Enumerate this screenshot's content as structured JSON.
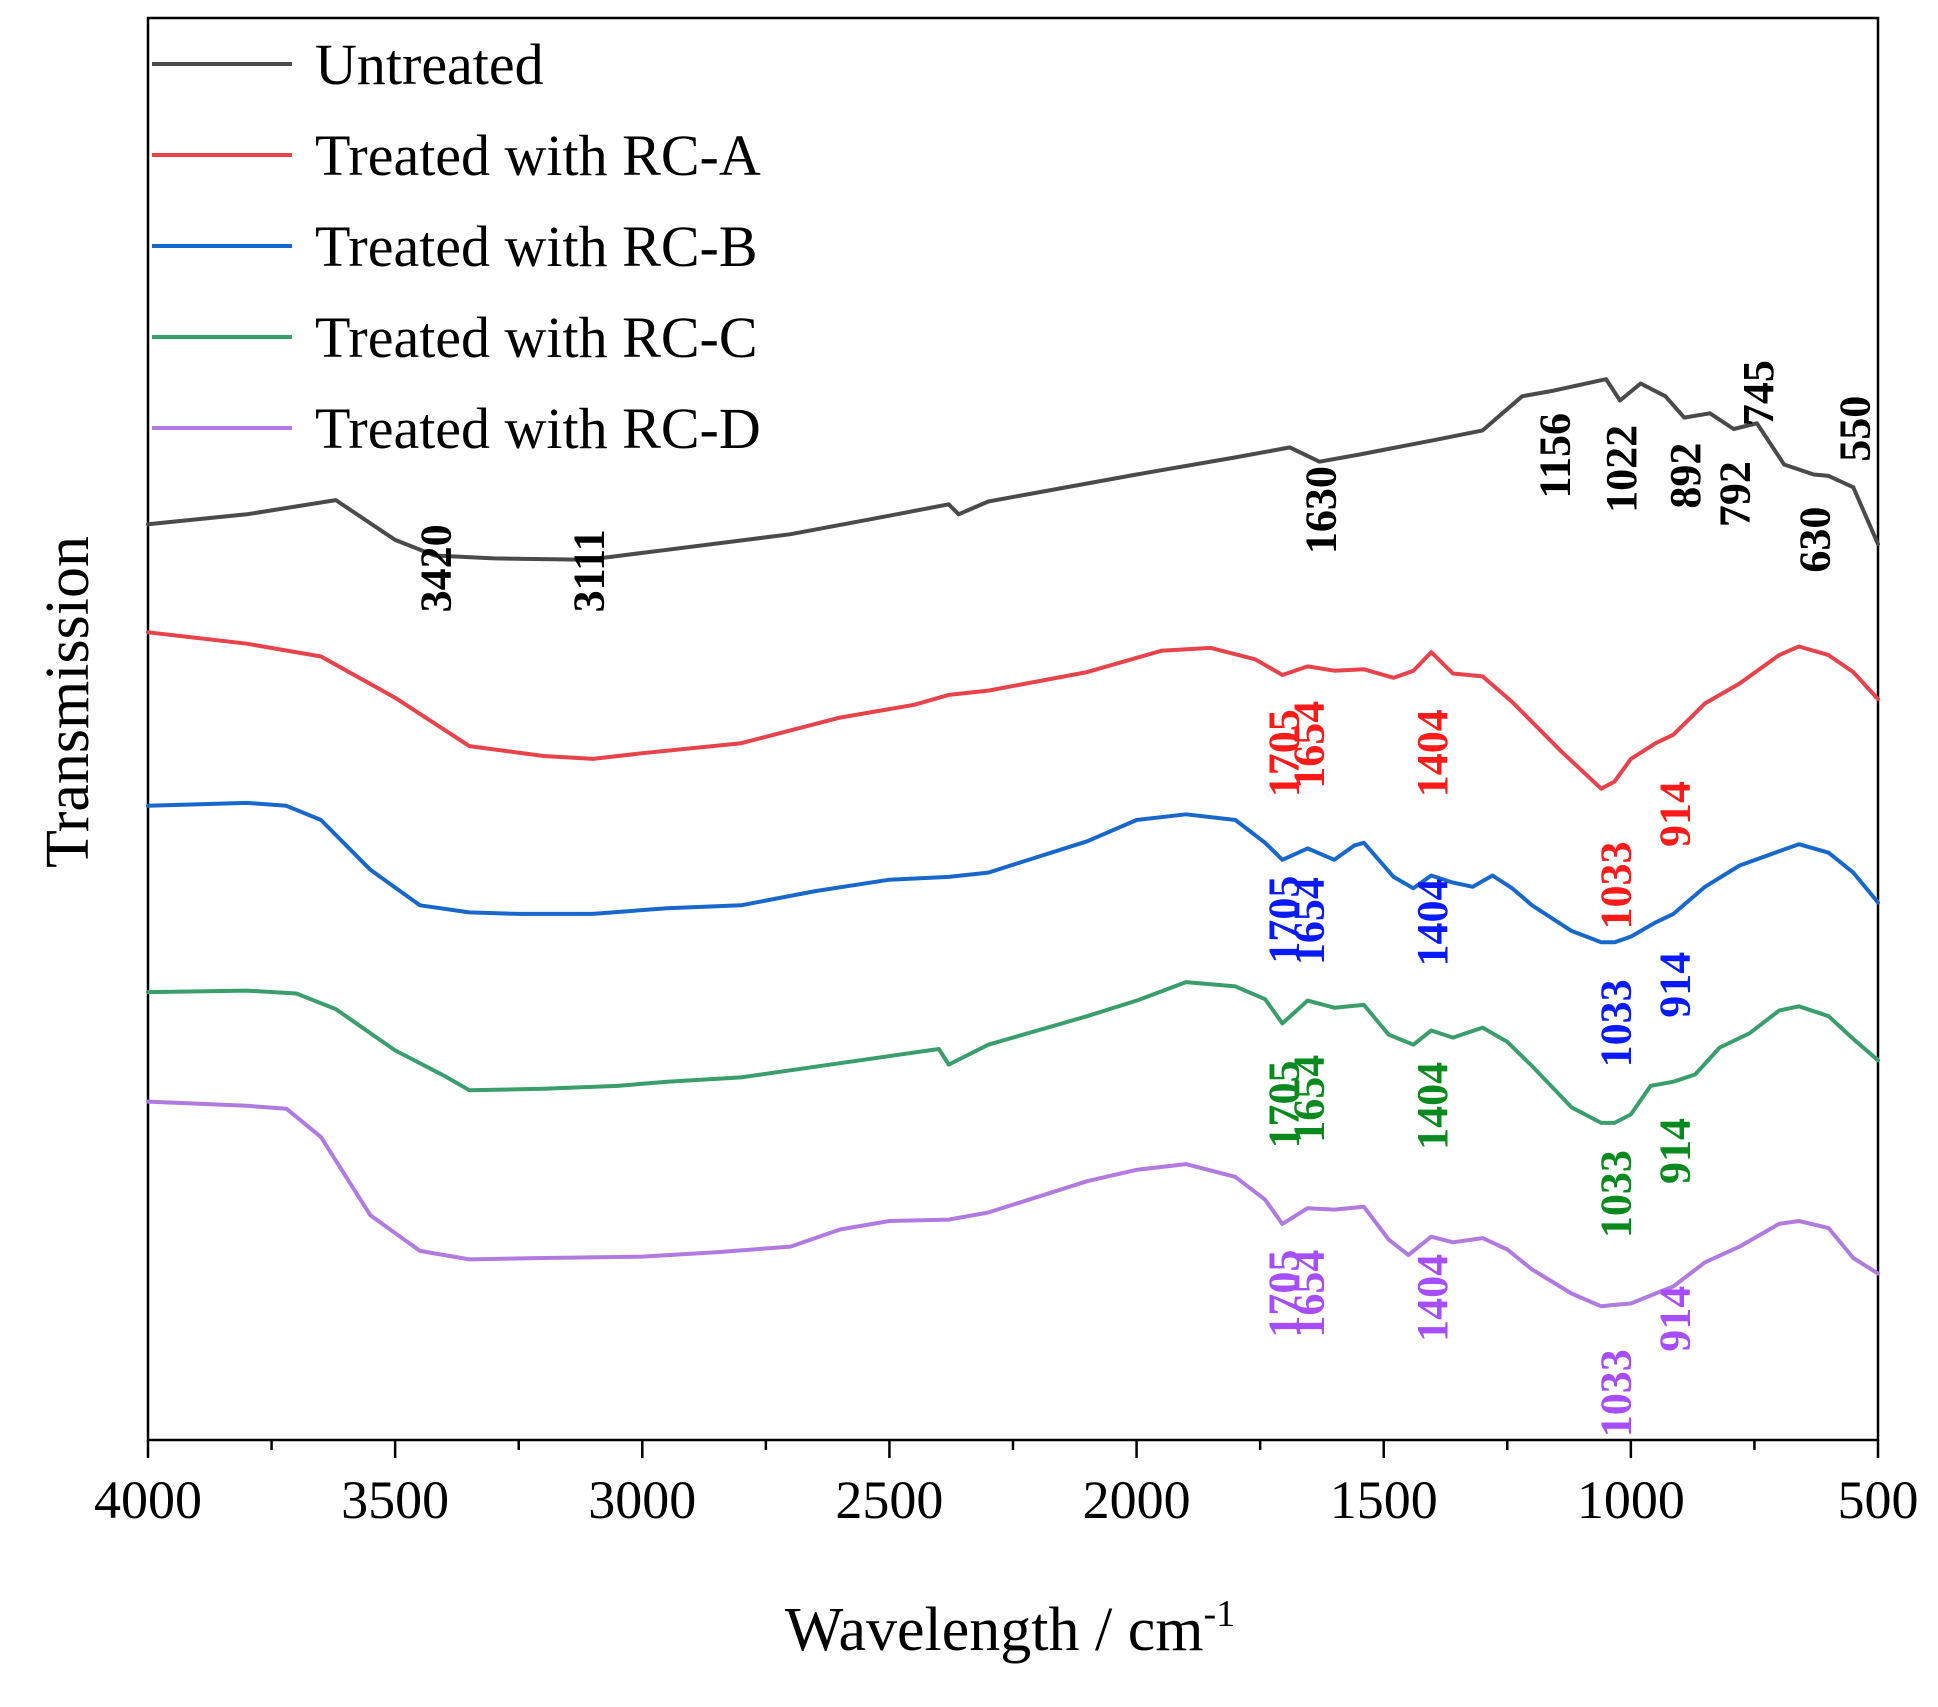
{
  "chart_data": {
    "type": "line",
    "title": "",
    "xlabel": "Wavelength / cm",
    "xlabel_sup": "-1",
    "ylabel": "Transmission",
    "xlim": [
      4000,
      500
    ],
    "x_reversed": true,
    "ylim": [
      0,
      100
    ],
    "y_ticks_shown": false,
    "x_ticks": [
      4000,
      3500,
      3000,
      2500,
      2000,
      1500,
      1000,
      500
    ],
    "x_tick_labels": [
      "4000",
      "3500",
      "3000",
      "2500",
      "2000",
      "1500",
      "1000",
      "500"
    ],
    "grid": false,
    "legend_position": "top-left",
    "series": [
      {
        "name": "Untreated",
        "color": "#4a4a4a",
        "points": [
          [
            4000,
            64.4
          ],
          [
            3800,
            65.1
          ],
          [
            3620,
            66.1
          ],
          [
            3500,
            63.3
          ],
          [
            3420,
            62.2
          ],
          [
            3300,
            62.0
          ],
          [
            3111,
            61.9
          ],
          [
            2950,
            62.6
          ],
          [
            2700,
            63.7
          ],
          [
            2500,
            65.0
          ],
          [
            2380,
            65.8
          ],
          [
            2360,
            65.1
          ],
          [
            2300,
            66.0
          ],
          [
            2000,
            67.9
          ],
          [
            1800,
            69.1
          ],
          [
            1690,
            69.8
          ],
          [
            1630,
            68.8
          ],
          [
            1550,
            69.3
          ],
          [
            1400,
            70.3
          ],
          [
            1300,
            71.0
          ],
          [
            1220,
            73.4
          ],
          [
            1156,
            73.8
          ],
          [
            1050,
            74.6
          ],
          [
            1022,
            73.1
          ],
          [
            980,
            74.3
          ],
          [
            930,
            73.4
          ],
          [
            892,
            71.9
          ],
          [
            840,
            72.2
          ],
          [
            792,
            71.1
          ],
          [
            745,
            71.5
          ],
          [
            690,
            68.6
          ],
          [
            630,
            67.9
          ],
          [
            600,
            67.8
          ],
          [
            550,
            67.0
          ],
          [
            500,
            63.0
          ]
        ]
      },
      {
        "name": "Treated with RC-A",
        "color": "#e8424a",
        "points": [
          [
            4000,
            56.8
          ],
          [
            3800,
            56.0
          ],
          [
            3650,
            55.1
          ],
          [
            3500,
            52.2
          ],
          [
            3350,
            48.8
          ],
          [
            3200,
            48.1
          ],
          [
            3100,
            47.9
          ],
          [
            3000,
            48.3
          ],
          [
            2800,
            49.0
          ],
          [
            2600,
            50.8
          ],
          [
            2450,
            51.7
          ],
          [
            2380,
            52.4
          ],
          [
            2300,
            52.7
          ],
          [
            2100,
            54.0
          ],
          [
            1950,
            55.5
          ],
          [
            1850,
            55.7
          ],
          [
            1760,
            54.9
          ],
          [
            1705,
            53.8
          ],
          [
            1654,
            54.4
          ],
          [
            1600,
            54.1
          ],
          [
            1540,
            54.2
          ],
          [
            1480,
            53.6
          ],
          [
            1440,
            54.1
          ],
          [
            1404,
            55.4
          ],
          [
            1360,
            53.9
          ],
          [
            1300,
            53.7
          ],
          [
            1240,
            51.9
          ],
          [
            1140,
            48.4
          ],
          [
            1060,
            45.8
          ],
          [
            1033,
            46.3
          ],
          [
            1000,
            47.9
          ],
          [
            950,
            49.0
          ],
          [
            914,
            49.6
          ],
          [
            850,
            51.8
          ],
          [
            780,
            53.2
          ],
          [
            700,
            55.2
          ],
          [
            660,
            55.8
          ],
          [
            600,
            55.2
          ],
          [
            550,
            54.0
          ],
          [
            500,
            52.1
          ]
        ]
      },
      {
        "name": "Treated with RC-B",
        "color": "#1868cc",
        "points": [
          [
            4000,
            44.6
          ],
          [
            3800,
            44.8
          ],
          [
            3720,
            44.6
          ],
          [
            3650,
            43.6
          ],
          [
            3550,
            40.1
          ],
          [
            3450,
            37.6
          ],
          [
            3350,
            37.1
          ],
          [
            3250,
            37.0
          ],
          [
            3100,
            37.0
          ],
          [
            2950,
            37.4
          ],
          [
            2800,
            37.6
          ],
          [
            2650,
            38.6
          ],
          [
            2500,
            39.4
          ],
          [
            2380,
            39.6
          ],
          [
            2300,
            39.9
          ],
          [
            2100,
            42.1
          ],
          [
            2000,
            43.6
          ],
          [
            1900,
            44.0
          ],
          [
            1800,
            43.6
          ],
          [
            1740,
            42.0
          ],
          [
            1705,
            40.8
          ],
          [
            1654,
            41.6
          ],
          [
            1600,
            40.8
          ],
          [
            1560,
            41.8
          ],
          [
            1540,
            42.0
          ],
          [
            1480,
            39.6
          ],
          [
            1440,
            38.8
          ],
          [
            1404,
            39.7
          ],
          [
            1360,
            39.2
          ],
          [
            1320,
            38.9
          ],
          [
            1280,
            39.7
          ],
          [
            1240,
            38.8
          ],
          [
            1200,
            37.6
          ],
          [
            1120,
            35.8
          ],
          [
            1060,
            35.0
          ],
          [
            1033,
            35.0
          ],
          [
            1000,
            35.4
          ],
          [
            950,
            36.4
          ],
          [
            914,
            37.0
          ],
          [
            850,
            38.9
          ],
          [
            780,
            40.4
          ],
          [
            700,
            41.4
          ],
          [
            660,
            41.9
          ],
          [
            600,
            41.3
          ],
          [
            550,
            39.9
          ],
          [
            500,
            37.8
          ]
        ]
      },
      {
        "name": "Treated with RC-C",
        "color": "#3a9e6a",
        "points": [
          [
            4000,
            31.5
          ],
          [
            3800,
            31.6
          ],
          [
            3700,
            31.4
          ],
          [
            3620,
            30.3
          ],
          [
            3500,
            27.4
          ],
          [
            3400,
            25.6
          ],
          [
            3350,
            24.6
          ],
          [
            3200,
            24.7
          ],
          [
            3050,
            24.9
          ],
          [
            2950,
            25.2
          ],
          [
            2800,
            25.5
          ],
          [
            2600,
            26.5
          ],
          [
            2400,
            27.5
          ],
          [
            2380,
            26.4
          ],
          [
            2300,
            27.8
          ],
          [
            2100,
            29.8
          ],
          [
            2000,
            30.9
          ],
          [
            1900,
            32.2
          ],
          [
            1800,
            31.9
          ],
          [
            1740,
            31.0
          ],
          [
            1705,
            29.3
          ],
          [
            1654,
            30.9
          ],
          [
            1600,
            30.4
          ],
          [
            1540,
            30.6
          ],
          [
            1490,
            28.5
          ],
          [
            1440,
            27.8
          ],
          [
            1404,
            28.8
          ],
          [
            1360,
            28.3
          ],
          [
            1300,
            29.0
          ],
          [
            1250,
            28.0
          ],
          [
            1200,
            26.3
          ],
          [
            1120,
            23.4
          ],
          [
            1060,
            22.3
          ],
          [
            1033,
            22.3
          ],
          [
            1000,
            22.9
          ],
          [
            960,
            24.9
          ],
          [
            914,
            25.2
          ],
          [
            870,
            25.7
          ],
          [
            820,
            27.6
          ],
          [
            760,
            28.6
          ],
          [
            700,
            30.2
          ],
          [
            660,
            30.5
          ],
          [
            600,
            29.8
          ],
          [
            550,
            28.2
          ],
          [
            500,
            26.7
          ]
        ]
      },
      {
        "name": "Treated with RC-D",
        "color": "#b07ae0",
        "points": [
          [
            4000,
            23.8
          ],
          [
            3800,
            23.5
          ],
          [
            3720,
            23.3
          ],
          [
            3650,
            21.3
          ],
          [
            3550,
            15.8
          ],
          [
            3450,
            13.3
          ],
          [
            3350,
            12.7
          ],
          [
            3200,
            12.8
          ],
          [
            3000,
            12.9
          ],
          [
            2850,
            13.2
          ],
          [
            2700,
            13.6
          ],
          [
            2600,
            14.8
          ],
          [
            2500,
            15.4
          ],
          [
            2380,
            15.5
          ],
          [
            2300,
            16.0
          ],
          [
            2100,
            18.2
          ],
          [
            2000,
            19.0
          ],
          [
            1900,
            19.4
          ],
          [
            1800,
            18.5
          ],
          [
            1740,
            16.9
          ],
          [
            1705,
            15.2
          ],
          [
            1654,
            16.3
          ],
          [
            1600,
            16.2
          ],
          [
            1540,
            16.4
          ],
          [
            1490,
            14.1
          ],
          [
            1450,
            13.0
          ],
          [
            1404,
            14.3
          ],
          [
            1360,
            13.9
          ],
          [
            1300,
            14.2
          ],
          [
            1250,
            13.4
          ],
          [
            1200,
            12.0
          ],
          [
            1120,
            10.3
          ],
          [
            1060,
            9.4
          ],
          [
            1033,
            9.5
          ],
          [
            1000,
            9.6
          ],
          [
            950,
            10.3
          ],
          [
            914,
            10.8
          ],
          [
            850,
            12.5
          ],
          [
            780,
            13.6
          ],
          [
            700,
            15.2
          ],
          [
            660,
            15.4
          ],
          [
            600,
            14.9
          ],
          [
            550,
            12.8
          ],
          [
            500,
            11.7
          ]
        ]
      }
    ],
    "annotations": [
      {
        "text": "3420",
        "x": 3420,
        "y": 58.2,
        "series": 0
      },
      {
        "text": "3111",
        "x": 3111,
        "y": 58.2,
        "series": 0
      },
      {
        "text": "1630",
        "x": 1630,
        "y": 62.3,
        "series": 0
      },
      {
        "text": "1156",
        "x": 1156,
        "y": 66.2,
        "series": 0
      },
      {
        "text": "1022",
        "x": 1022,
        "y": 65.2,
        "series": 0
      },
      {
        "text": "892",
        "x": 892,
        "y": 65.5,
        "series": 0
      },
      {
        "text": "792",
        "x": 792,
        "y": 64.2,
        "series": 0
      },
      {
        "text": "745",
        "x": 745,
        "y": 71.3,
        "series": 0
      },
      {
        "text": "630",
        "x": 630,
        "y": 61.0,
        "series": 0
      },
      {
        "text": "550",
        "x": 550,
        "y": 68.8,
        "series": 0
      },
      {
        "text": "1705",
        "x": 1705,
        "y": 45.2,
        "series": 1
      },
      {
        "text": "1654",
        "x": 1654,
        "y": 45.8,
        "series": 1
      },
      {
        "text": "1404",
        "x": 1404,
        "y": 45.2,
        "series": 1
      },
      {
        "text": "1033",
        "x": 1033,
        "y": 35.9,
        "series": 1
      },
      {
        "text": "914",
        "x": 914,
        "y": 41.7,
        "series": 1
      },
      {
        "text": "1705",
        "x": 1705,
        "y": 33.5,
        "series": 2
      },
      {
        "text": "1654",
        "x": 1654,
        "y": 33.4,
        "series": 2
      },
      {
        "text": "1404",
        "x": 1404,
        "y": 33.3,
        "series": 2
      },
      {
        "text": "1033",
        "x": 1033,
        "y": 26.2,
        "series": 2
      },
      {
        "text": "914",
        "x": 914,
        "y": 29.7,
        "series": 2
      },
      {
        "text": "1705",
        "x": 1705,
        "y": 20.5,
        "series": 3
      },
      {
        "text": "1654",
        "x": 1654,
        "y": 20.9,
        "series": 3
      },
      {
        "text": "1404",
        "x": 1404,
        "y": 20.4,
        "series": 3
      },
      {
        "text": "1033",
        "x": 1033,
        "y": 14.2,
        "series": 3
      },
      {
        "text": "914",
        "x": 914,
        "y": 18.0,
        "series": 3
      },
      {
        "text": "1705",
        "x": 1705,
        "y": 7.2,
        "series": 4
      },
      {
        "text": "1654",
        "x": 1654,
        "y": 7.2,
        "series": 4
      },
      {
        "text": "1404",
        "x": 1404,
        "y": 6.9,
        "series": 4
      },
      {
        "text": "1033",
        "x": 1033,
        "y": 0.2,
        "series": 4
      },
      {
        "text": "914",
        "x": 914,
        "y": 6.2,
        "series": 4
      }
    ],
    "annotation_colors": [
      "#000000",
      "#ff1a1a",
      "#0a1aff",
      "#0a8a1e",
      "#a64dff"
    ]
  }
}
